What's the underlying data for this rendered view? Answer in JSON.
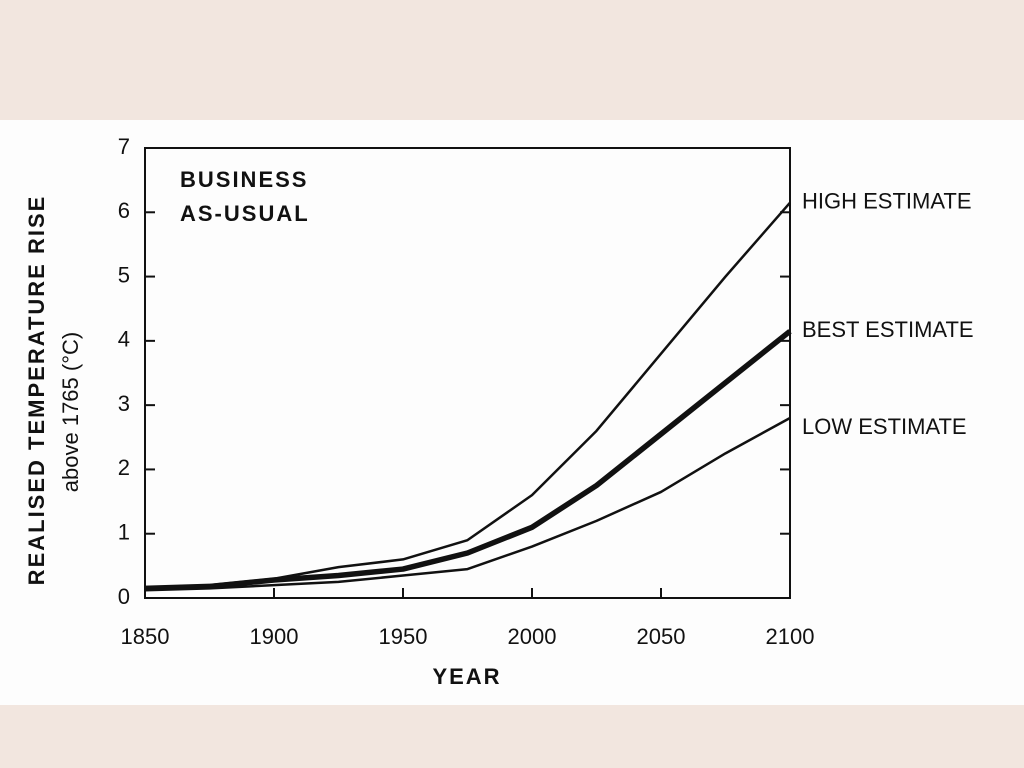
{
  "chart_data": {
    "type": "line",
    "annotation": [
      "BUSINESS",
      "AS-USUAL"
    ],
    "x_label": "YEAR",
    "y_label": "REALISED TEMPERATURE RISE",
    "y_sublabel": "above 1765 (°C)",
    "x": [
      1850,
      1875,
      1900,
      1925,
      1950,
      1975,
      2000,
      2025,
      2050,
      2075,
      2100
    ],
    "series": [
      {
        "name": "HIGH ESTIMATE",
        "color": "#111111",
        "values": [
          0.15,
          0.2,
          0.3,
          0.48,
          0.6,
          0.9,
          1.6,
          2.6,
          3.8,
          5.0,
          6.15
        ]
      },
      {
        "name": "BEST ESTIMATE",
        "color": "#111111",
        "values": [
          0.15,
          0.18,
          0.28,
          0.35,
          0.45,
          0.7,
          1.1,
          1.75,
          2.55,
          3.35,
          4.15
        ]
      },
      {
        "name": "LOW ESTIMATE",
        "color": "#111111",
        "values": [
          0.12,
          0.15,
          0.2,
          0.25,
          0.35,
          0.45,
          0.8,
          1.2,
          1.65,
          2.25,
          2.8
        ]
      }
    ],
    "xlim": [
      1850,
      2100
    ],
    "xticks": [
      1850,
      1900,
      1950,
      2000,
      2050,
      2100
    ],
    "ylim": [
      0,
      7
    ],
    "yticks": [
      0,
      1,
      2,
      3,
      4,
      5,
      6,
      7
    ],
    "grid": false
  }
}
